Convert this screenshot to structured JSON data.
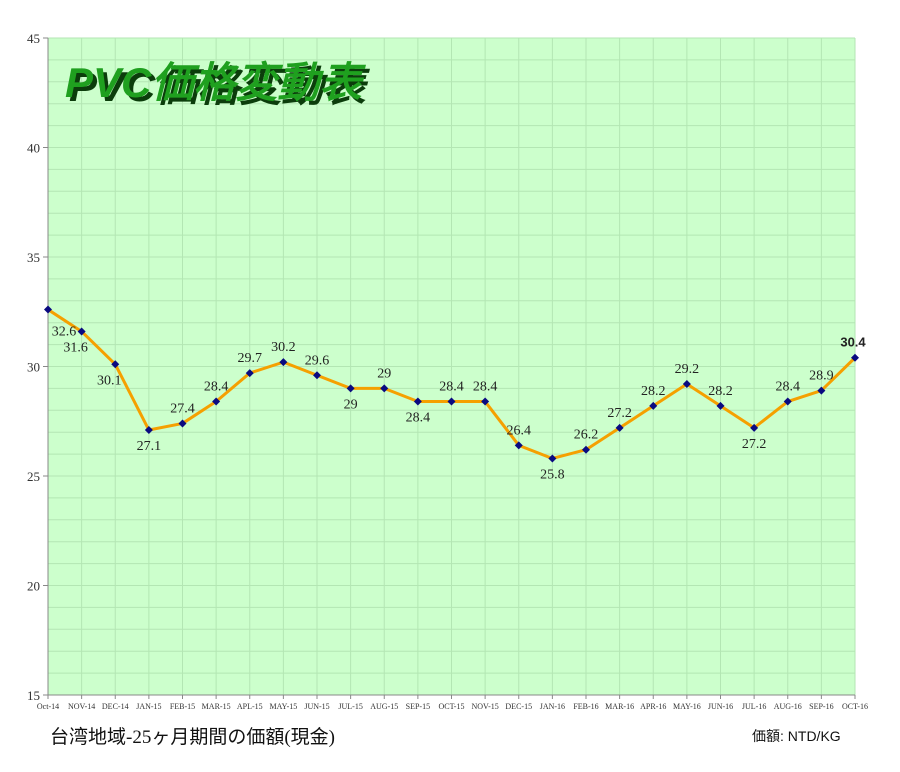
{
  "chart_data": {
    "type": "line",
    "title": "PVC価格変動表",
    "categories": [
      "Oct-14",
      "NOV-14",
      "DEC-14",
      "JAN-15",
      "FEB-15",
      "MAR-15",
      "APL-15",
      "MAY-15",
      "JUN-15",
      "JUL-15",
      "AUG-15",
      "SEP-15",
      "OCT-15",
      "NOV-15",
      "DEC-15",
      "JAN-16",
      "FEB-16",
      "MAR-16",
      "APR-16",
      "MAY-16",
      "JUN-16",
      "JUL-16",
      "AUG-16",
      "SEP-16",
      "OCT-16"
    ],
    "values": [
      32.6,
      31.6,
      30.1,
      27.1,
      27.4,
      28.4,
      29.7,
      30.2,
      29.6,
      29,
      29,
      28.4,
      28.4,
      28.4,
      26.4,
      25.8,
      26.2,
      27.2,
      28.2,
      29.2,
      28.2,
      27.2,
      28.4,
      28.9,
      30.4
    ],
    "data_labels": [
      "32.6",
      "31.6",
      "30.1",
      "27.1",
      "27.4",
      "28.4",
      "29.7",
      "30.2",
      "29.6",
      "29",
      "29",
      "28.4",
      "28.4",
      "28.4",
      "26.4",
      "25.8",
      "26.2",
      "27.2",
      "28.2",
      "29.2",
      "28.2",
      "27.2",
      "28.4",
      "28.9",
      "30.4"
    ],
    "ylim": [
      15,
      45
    ],
    "yticks": [
      15,
      20,
      25,
      30,
      35,
      40,
      45
    ],
    "grid": true,
    "colors": {
      "plot_background": "#ccffcc",
      "grid": "#b3e6b3",
      "line": "#f5a000",
      "marker": "#0a0a80",
      "title_fill": "#1fa01f",
      "title_shadow": "#0b3d0b"
    }
  },
  "footer": {
    "caption": "台湾地域-25ヶ月期間の価額(現金)",
    "unit": "価額: NTD/KG"
  }
}
